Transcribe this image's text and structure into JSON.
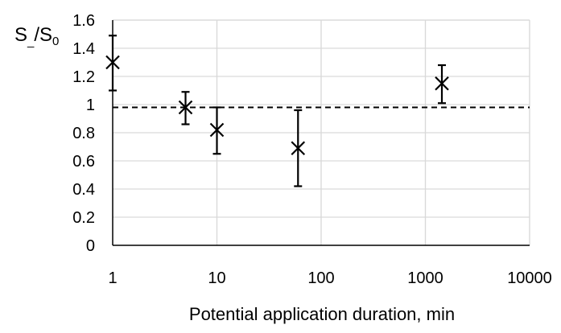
{
  "chart_data": {
    "type": "scatter",
    "title": "",
    "xlabel": "Potential application duration, min",
    "ylabel": {
      "main": "S",
      "sub1": "_",
      "sep": "/S",
      "sub2": "0"
    },
    "x_scale": "log",
    "xlim": [
      1,
      10000
    ],
    "ylim": [
      0,
      1.6
    ],
    "x_ticks": [
      "1",
      "10",
      "100",
      "1000",
      "10000"
    ],
    "y_ticks": [
      "0",
      "0.2",
      "0.4",
      "0.6",
      "0.8",
      "1",
      "1.2",
      "1.4",
      "1.6"
    ],
    "grid": true,
    "marker": "x",
    "series": [
      {
        "points": [
          {
            "x": 1,
            "y": 1.3,
            "err_low": 1.1,
            "err_high": 1.49
          },
          {
            "x": 5,
            "y": 0.98,
            "err_low": 0.86,
            "err_high": 1.09
          },
          {
            "x": 10,
            "y": 0.82,
            "err_low": 0.65,
            "err_high": 0.98
          },
          {
            "x": 60,
            "y": 0.69,
            "err_low": 0.42,
            "err_high": 0.96
          },
          {
            "x": 1440,
            "y": 1.15,
            "err_low": 1.01,
            "err_high": 1.28
          }
        ]
      }
    ],
    "reference_line": {
      "y": 0.98,
      "style": "dashed"
    },
    "colors": {
      "marker": "#000000",
      "grid": "#d9d9d9",
      "axis": "#000000"
    }
  }
}
